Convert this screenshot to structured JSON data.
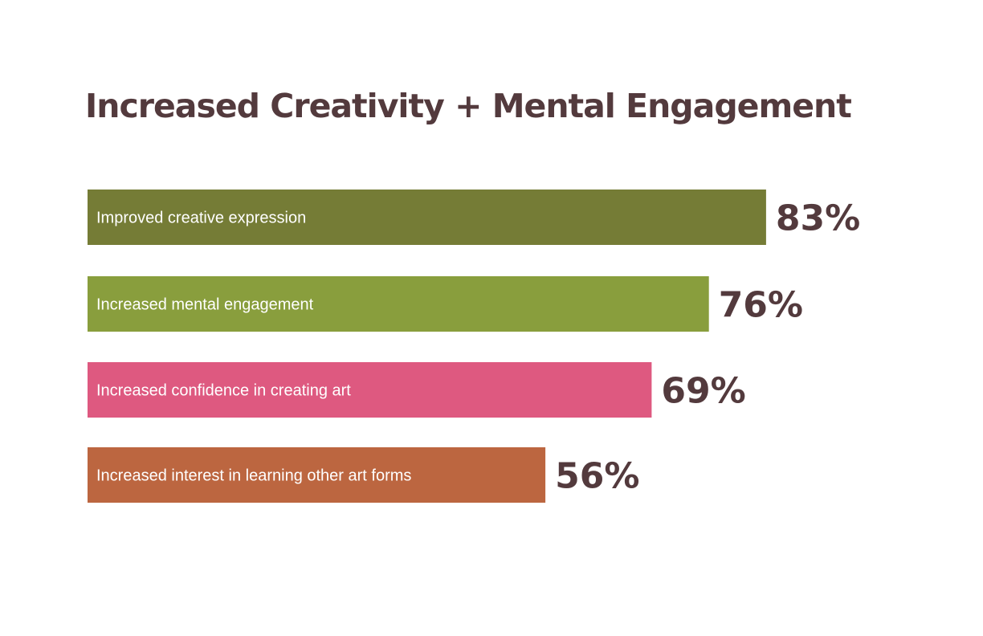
{
  "chart_data": {
    "type": "bar",
    "orientation": "horizontal",
    "title": "Increased Creativity + Mental Engagement",
    "categories": [
      "Improved creative expression",
      "Increased mental engagement",
      "Increased confidence in creating art",
      "Increased interest in learning other art forms"
    ],
    "values": [
      83,
      76,
      69,
      56
    ],
    "value_labels": [
      "83%",
      "76%",
      "69%",
      "56%"
    ],
    "unit": "%",
    "xlim": [
      0,
      100
    ],
    "grid": false,
    "colors": [
      "#757c36",
      "#899e3d",
      "#de5980",
      "#bc6640"
    ]
  }
}
